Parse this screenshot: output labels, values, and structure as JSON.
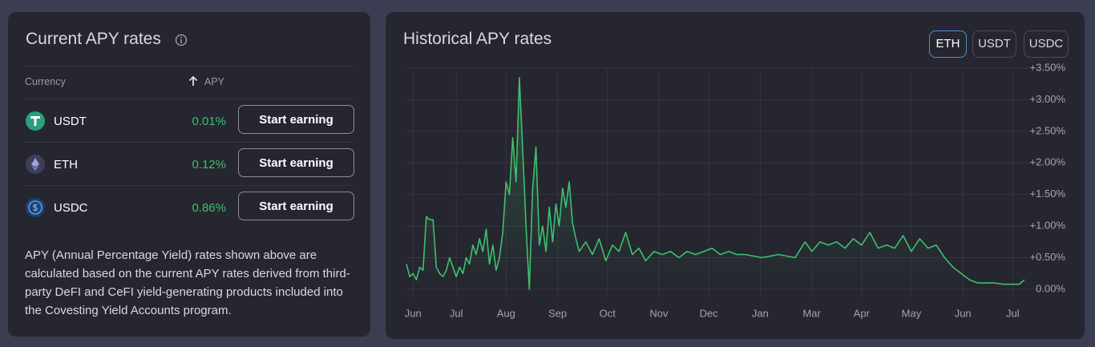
{
  "current": {
    "title": "Current APY rates",
    "columns": [
      "Currency",
      "APY"
    ],
    "rows": [
      {
        "currency": "USDT",
        "apy": "0.01%",
        "action": "Start earning"
      },
      {
        "currency": "ETH",
        "apy": "0.12%",
        "action": "Start earning"
      },
      {
        "currency": "USDC",
        "apy": "0.86%",
        "action": "Start earning"
      }
    ],
    "note": "APY (Annual Percentage Yield) rates shown above are calculated based on the current APY rates derived from third-party DeFI and CeFI yield-generating products included into the Covesting Yield Accounts program."
  },
  "historical": {
    "title": "Historical APY rates",
    "tabs": [
      "ETH",
      "USDT",
      "USDC"
    ],
    "active_tab": 0,
    "chart_data": {
      "type": "line",
      "color": "#3fbf6f",
      "grid": true,
      "xlim": [
        -4,
        370
      ],
      "ylim": [
        -0.14,
        3.5
      ],
      "xticks": [
        {
          "value": 0,
          "label": "Jun"
        },
        {
          "value": 26,
          "label": "Jul"
        },
        {
          "value": 56,
          "label": "Aug"
        },
        {
          "value": 87,
          "label": "Sep"
        },
        {
          "value": 117,
          "label": "Oct"
        },
        {
          "value": 148,
          "label": "Nov"
        },
        {
          "value": 178,
          "label": "Dec"
        },
        {
          "value": 209,
          "label": "Jan"
        },
        {
          "value": 240,
          "label": "Mar"
        },
        {
          "value": 270,
          "label": "Apr"
        },
        {
          "value": 300,
          "label": "May"
        },
        {
          "value": 331,
          "label": "Jun"
        },
        {
          "value": 361,
          "label": "Jul"
        }
      ],
      "yticks": [
        {
          "value": 0,
          "label": "0.00%"
        },
        {
          "value": 0.5,
          "label": "+0.50%"
        },
        {
          "value": 1,
          "label": "+1.00%"
        },
        {
          "value": 1.5,
          "label": "+1.50%"
        },
        {
          "value": 2,
          "label": "+2.00%"
        },
        {
          "value": 2.5,
          "label": "+2.50%"
        },
        {
          "value": 3,
          "label": "+3.00%"
        },
        {
          "value": 3.5,
          "label": "+3.50%"
        }
      ],
      "x": [
        -4,
        -2,
        0,
        2,
        4,
        6,
        8,
        10,
        12,
        14,
        16,
        18,
        20,
        22,
        24,
        26,
        28,
        30,
        32,
        34,
        36,
        38,
        40,
        42,
        44,
        46,
        48,
        50,
        52,
        54,
        56,
        58,
        60,
        62,
        64,
        66,
        68,
        70,
        72,
        74,
        76,
        78,
        80,
        82,
        84,
        86,
        88,
        90,
        92,
        94,
        96,
        98,
        100,
        104,
        108,
        112,
        116,
        120,
        124,
        128,
        132,
        136,
        140,
        145,
        150,
        155,
        160,
        165,
        170,
        175,
        180,
        185,
        190,
        195,
        200,
        210,
        220,
        230,
        236,
        240,
        245,
        250,
        255,
        260,
        265,
        270,
        275,
        280,
        285,
        290,
        295,
        300,
        305,
        310,
        315,
        320,
        325,
        330,
        335,
        340,
        345,
        350,
        355,
        360,
        365,
        368
      ],
      "values": [
        0.4,
        0.2,
        0.25,
        0.15,
        0.35,
        0.3,
        1.15,
        1.1,
        1.1,
        0.35,
        0.25,
        0.2,
        0.3,
        0.5,
        0.35,
        0.2,
        0.35,
        0.25,
        0.5,
        0.4,
        0.7,
        0.55,
        0.8,
        0.6,
        0.95,
        0.4,
        0.7,
        0.3,
        0.5,
        0.9,
        1.7,
        1.5,
        2.4,
        1.7,
        3.35,
        2.2,
        1.0,
        0.0,
        1.6,
        2.25,
        0.7,
        1.0,
        0.6,
        1.3,
        0.75,
        1.35,
        1.0,
        1.6,
        1.3,
        1.7,
        1.05,
        0.8,
        0.6,
        0.75,
        0.55,
        0.8,
        0.45,
        0.7,
        0.6,
        0.9,
        0.55,
        0.65,
        0.45,
        0.6,
        0.55,
        0.6,
        0.5,
        0.6,
        0.55,
        0.6,
        0.65,
        0.55,
        0.6,
        0.55,
        0.55,
        0.5,
        0.55,
        0.5,
        0.75,
        0.6,
        0.75,
        0.7,
        0.75,
        0.65,
        0.8,
        0.7,
        0.9,
        0.65,
        0.7,
        0.65,
        0.85,
        0.6,
        0.8,
        0.65,
        0.7,
        0.5,
        0.35,
        0.25,
        0.15,
        0.1,
        0.1,
        0.1,
        0.08,
        0.08,
        0.08,
        0.15
      ]
    }
  }
}
